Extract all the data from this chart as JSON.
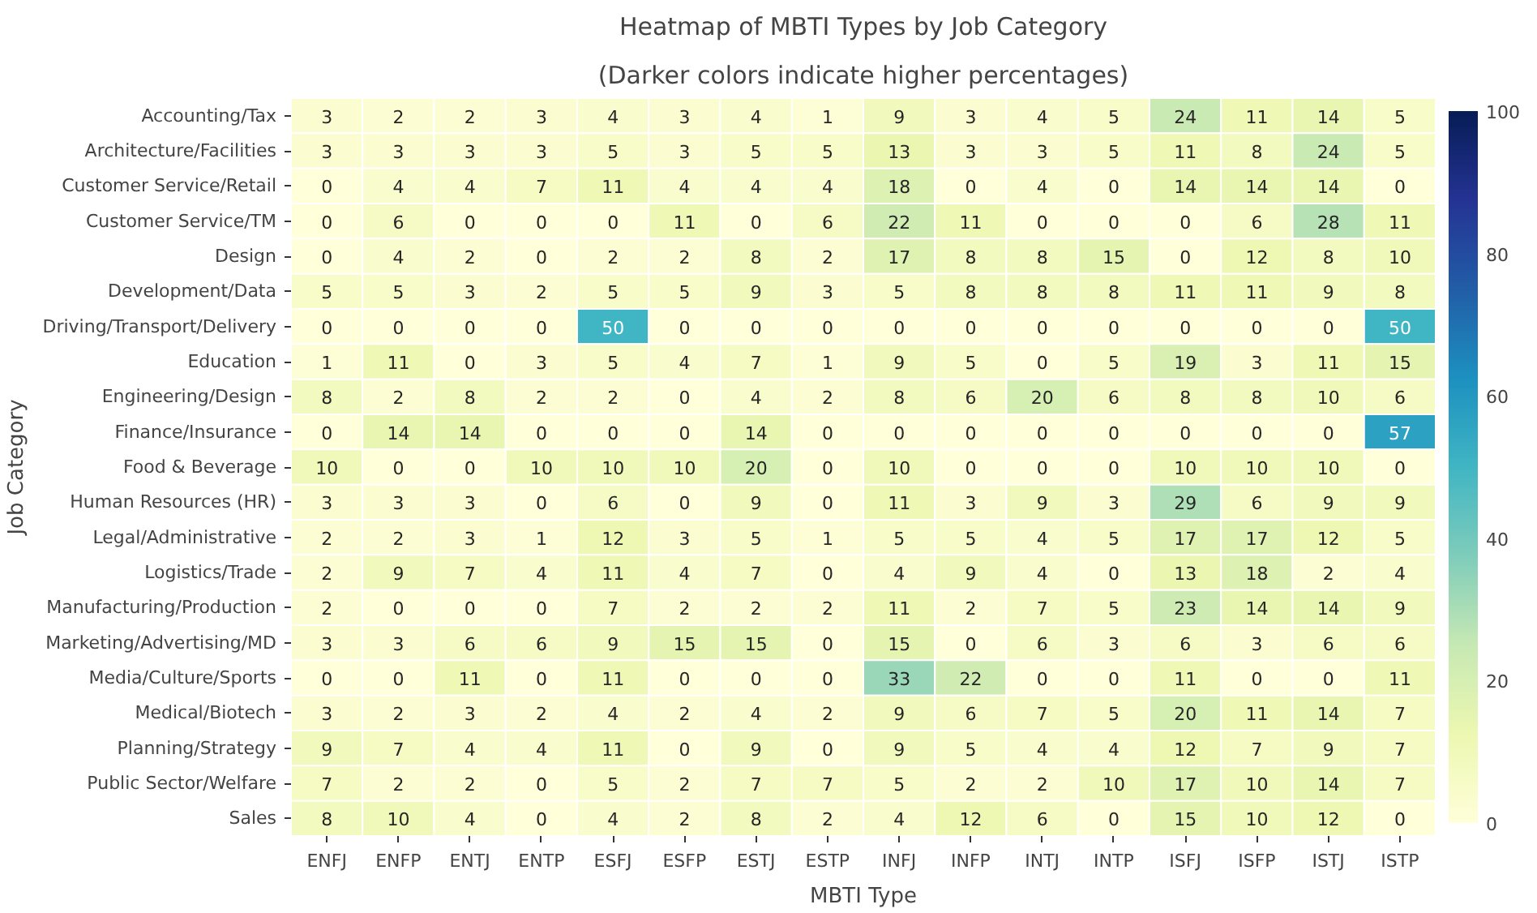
{
  "chart_data": {
    "type": "heatmap",
    "title": "Heatmap of MBTI Types by Job Category",
    "subtitle": "(Darker colors indicate higher percentages)",
    "xlabel": "MBTI Type",
    "ylabel": "Job Category",
    "categories": [
      "ENFJ",
      "ENFP",
      "ENTJ",
      "ENTP",
      "ESFJ",
      "ESFP",
      "ESTJ",
      "ESTP",
      "INFJ",
      "INFP",
      "INTJ",
      "INTP",
      "ISFJ",
      "ISFP",
      "ISTJ",
      "ISTP"
    ],
    "y_categories": [
      "Accounting/Tax",
      "Architecture/Facilities",
      "Customer Service/Retail",
      "Customer Service/TM",
      "Design",
      "Development/Data",
      "Driving/Transport/Delivery",
      "Education",
      "Engineering/Design",
      "Finance/Insurance",
      "Food & Beverage",
      "Human Resources (HR)",
      "Legal/Administrative",
      "Logistics/Trade",
      "Manufacturing/Production",
      "Marketing/Advertising/MD",
      "Media/Culture/Sports",
      "Medical/Biotech",
      "Planning/Strategy",
      "Public Sector/Welfare",
      "Sales"
    ],
    "cells": [
      [
        3,
        2,
        2,
        3,
        4,
        3,
        4,
        1,
        9,
        3,
        4,
        5,
        24,
        11,
        14,
        5
      ],
      [
        3,
        3,
        3,
        3,
        5,
        3,
        5,
        5,
        13,
        3,
        3,
        5,
        11,
        8,
        24,
        5
      ],
      [
        0,
        4,
        4,
        7,
        11,
        4,
        4,
        4,
        18,
        0,
        4,
        0,
        14,
        14,
        14,
        0
      ],
      [
        0,
        6,
        0,
        0,
        0,
        11,
        0,
        6,
        22,
        11,
        0,
        0,
        0,
        6,
        28,
        11
      ],
      [
        0,
        4,
        2,
        0,
        2,
        2,
        8,
        2,
        17,
        8,
        8,
        15,
        0,
        12,
        8,
        10
      ],
      [
        5,
        5,
        3,
        2,
        5,
        5,
        9,
        3,
        5,
        8,
        8,
        8,
        11,
        11,
        9,
        8
      ],
      [
        0,
        0,
        0,
        0,
        50,
        0,
        0,
        0,
        0,
        0,
        0,
        0,
        0,
        0,
        0,
        50
      ],
      [
        1,
        11,
        0,
        3,
        5,
        4,
        7,
        1,
        9,
        5,
        0,
        5,
        19,
        3,
        11,
        15
      ],
      [
        8,
        2,
        8,
        2,
        2,
        0,
        4,
        2,
        8,
        6,
        20,
        6,
        8,
        8,
        10,
        6
      ],
      [
        0,
        14,
        14,
        0,
        0,
        0,
        14,
        0,
        0,
        0,
        0,
        0,
        0,
        0,
        0,
        57
      ],
      [
        10,
        0,
        0,
        10,
        10,
        10,
        20,
        0,
        10,
        0,
        0,
        0,
        10,
        10,
        10,
        0
      ],
      [
        3,
        3,
        3,
        0,
        6,
        0,
        9,
        0,
        11,
        3,
        9,
        3,
        29,
        6,
        9,
        9
      ],
      [
        2,
        2,
        3,
        1,
        12,
        3,
        5,
        1,
        5,
        5,
        4,
        5,
        17,
        17,
        12,
        5
      ],
      [
        2,
        9,
        7,
        4,
        11,
        4,
        7,
        0,
        4,
        9,
        4,
        0,
        13,
        18,
        2,
        4
      ],
      [
        2,
        0,
        0,
        0,
        7,
        2,
        2,
        2,
        11,
        2,
        7,
        5,
        23,
        14,
        14,
        9
      ],
      [
        3,
        3,
        6,
        6,
        9,
        15,
        15,
        0,
        15,
        0,
        6,
        3,
        6,
        3,
        6,
        6
      ],
      [
        0,
        0,
        11,
        0,
        11,
        0,
        0,
        0,
        33,
        22,
        0,
        0,
        11,
        0,
        0,
        11
      ],
      [
        3,
        2,
        3,
        2,
        4,
        2,
        4,
        2,
        9,
        6,
        7,
        5,
        20,
        11,
        14,
        7
      ],
      [
        9,
        7,
        4,
        4,
        11,
        0,
        9,
        0,
        9,
        5,
        4,
        4,
        12,
        7,
        9,
        7
      ],
      [
        7,
        2,
        2,
        0,
        5,
        2,
        7,
        7,
        5,
        2,
        2,
        10,
        17,
        10,
        14,
        7
      ],
      [
        8,
        10,
        4,
        0,
        4,
        2,
        8,
        2,
        4,
        12,
        6,
        0,
        15,
        10,
        12,
        0
      ]
    ],
    "clim": [
      0,
      100
    ],
    "cticks": [
      0,
      20,
      40,
      60,
      80,
      100
    ],
    "data_labels": true
  }
}
